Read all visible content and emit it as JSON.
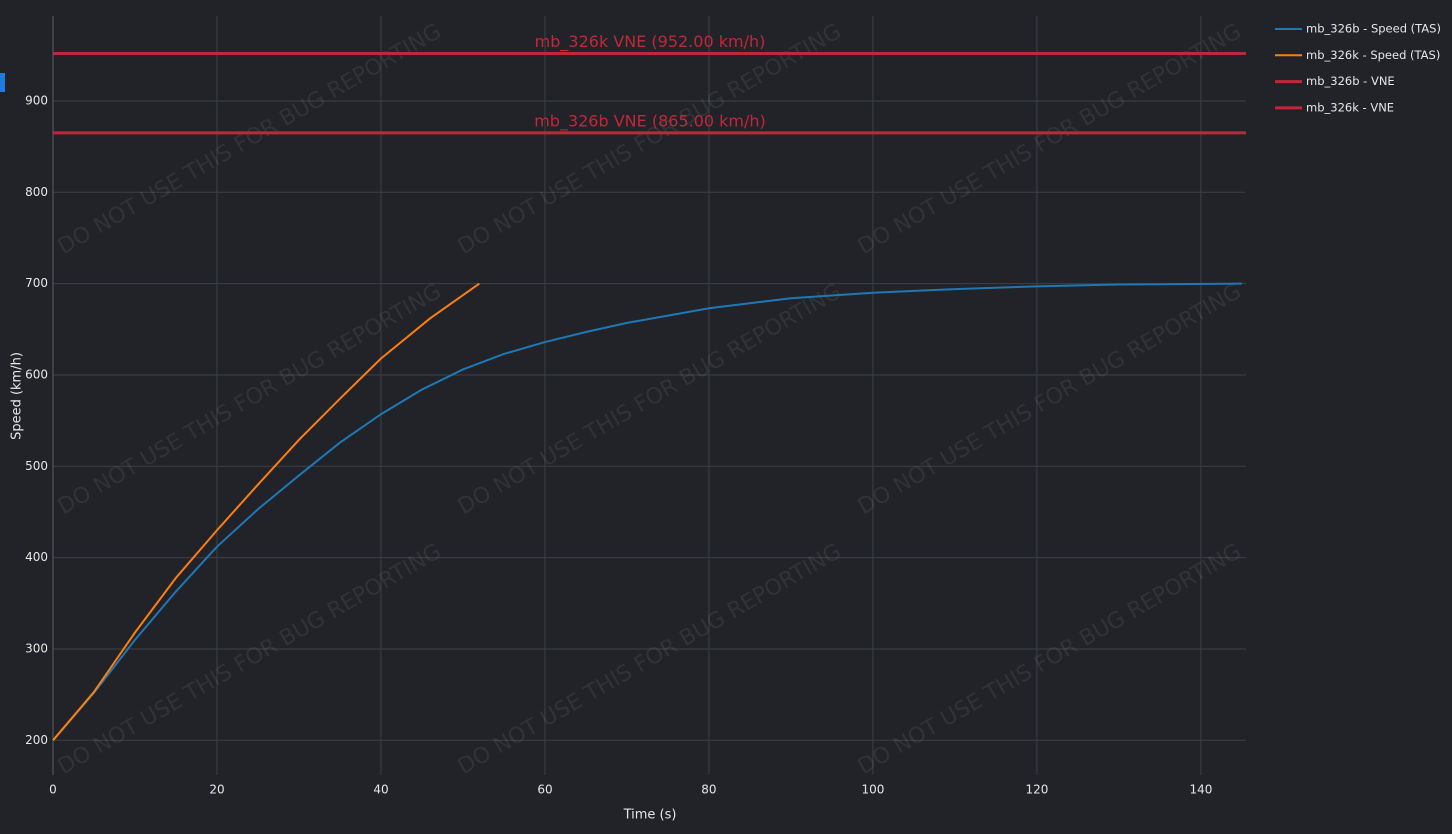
{
  "chart_data": {
    "type": "line",
    "watermark": "DO NOT USE THIS FOR BUG REPORTING",
    "x_label": "Time (s)",
    "y_label": "Speed (km/h)",
    "series": [
      {
        "name": "mb_326b - Speed (TAS)",
        "color": "#1f77b4",
        "x": [
          0,
          5,
          10,
          15,
          20,
          25,
          30,
          35,
          40,
          45,
          50,
          55,
          60,
          65,
          70,
          75,
          80,
          90,
          100,
          110,
          120,
          130,
          145
        ],
        "values": [
          200,
          252,
          310,
          363,
          412,
          453,
          490,
          526,
          557,
          584,
          606,
          623,
          636,
          647,
          657,
          665,
          673,
          684,
          690,
          694,
          697,
          699,
          700
        ]
      },
      {
        "name": "mb_326k - Speed (TAS)",
        "color": "#ff7f0e",
        "x": [
          0,
          5,
          10,
          15,
          20,
          25,
          30,
          35,
          40,
          46,
          52
        ],
        "values": [
          200,
          253,
          318,
          378,
          430,
          480,
          529,
          574,
          618,
          662,
          700
        ]
      }
    ],
    "hlines": [
      {
        "name": "mb_326b - VNE",
        "value": 865,
        "label": "mb_326b VNE (865.00 km/h)",
        "color": "#c0283a"
      },
      {
        "name": "mb_326k - VNE",
        "value": 952,
        "label": "mb_326k VNE (952.00 km/h)",
        "color": "#c0283a"
      }
    ],
    "xlim": [
      0,
      145.5
    ],
    "ylim": [
      162,
      993
    ],
    "xticks": [
      0,
      20,
      40,
      60,
      80,
      100,
      120,
      140
    ],
    "yticks": [
      200,
      300,
      400,
      500,
      600,
      700,
      800,
      900
    ],
    "grid": true
  }
}
